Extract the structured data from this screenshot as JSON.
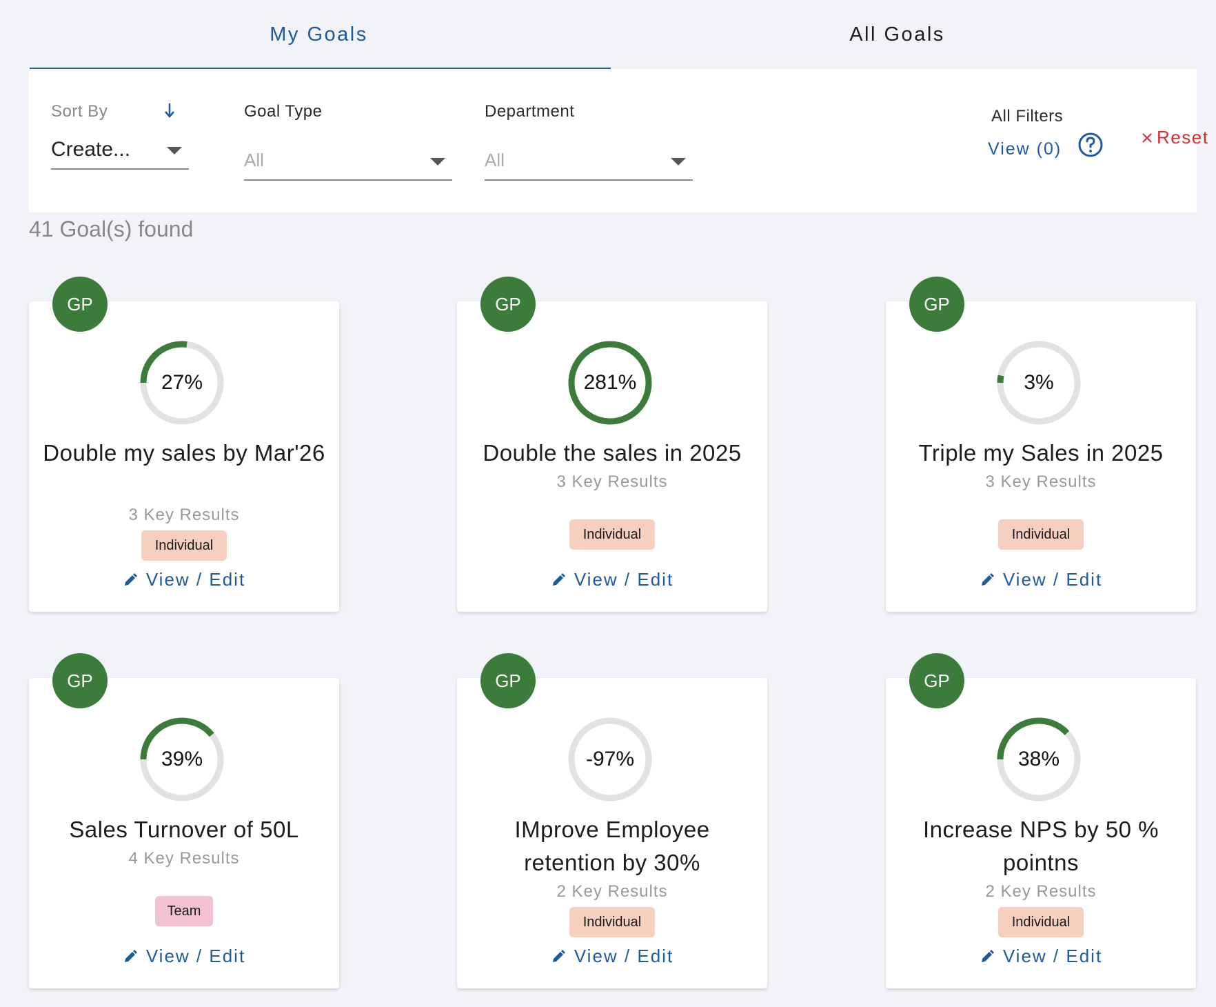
{
  "tabs": {
    "my_goals": "My Goals",
    "all_goals": "All Goals"
  },
  "filters": {
    "sort_by_label": "Sort By",
    "sort_by_value": "Create...",
    "goal_type_label": "Goal Type",
    "goal_type_value": "All",
    "department_label": "Department",
    "department_value": "All",
    "all_filters_label": "All Filters",
    "view_label": "View (0)",
    "reset_label": "Reset"
  },
  "summary": {
    "count_text": "41 Goal(s) found"
  },
  "colors": {
    "accent": "#1e5a9c",
    "progress": "#3c7c3a",
    "track": "#e2e2e2",
    "reset": "#d32f2f",
    "individual": "#f6cfbf",
    "team": "#f2c2d3"
  },
  "icons": {
    "sort": "arrow-down-icon",
    "help": "help-circle-icon",
    "reset": "close-icon",
    "edit": "pencil-icon"
  },
  "goals": [
    {
      "avatar": "GP",
      "progress_label": "27%",
      "progress": 27,
      "title": "Double my sales by Mar'26",
      "key_results": "3 Key Results",
      "type": "Individual",
      "action": "View / Edit"
    },
    {
      "avatar": "GP",
      "progress_label": "281%",
      "progress": 281,
      "title": "Double the sales in 2025",
      "key_results": "3 Key Results",
      "type": "Individual",
      "action": "View / Edit"
    },
    {
      "avatar": "GP",
      "progress_label": "3%",
      "progress": 3,
      "title": "Triple my Sales in 2025",
      "key_results": "3 Key Results",
      "type": "Individual",
      "action": "View / Edit"
    },
    {
      "avatar": "GP",
      "progress_label": "39%",
      "progress": 39,
      "title": "Sales Turnover of 50L",
      "key_results": "4 Key Results",
      "type": "Team",
      "action": "View / Edit"
    },
    {
      "avatar": "GP",
      "progress_label": "-97%",
      "progress": -97,
      "title": "IMprove Employee retention by 30%",
      "key_results": "2 Key Results",
      "type": "Individual",
      "action": "View / Edit"
    },
    {
      "avatar": "GP",
      "progress_label": "38%",
      "progress": 38,
      "title": "Increase NPS by 50 % pointns",
      "key_results": "2 Key Results",
      "type": "Individual",
      "action": "View / Edit"
    }
  ]
}
